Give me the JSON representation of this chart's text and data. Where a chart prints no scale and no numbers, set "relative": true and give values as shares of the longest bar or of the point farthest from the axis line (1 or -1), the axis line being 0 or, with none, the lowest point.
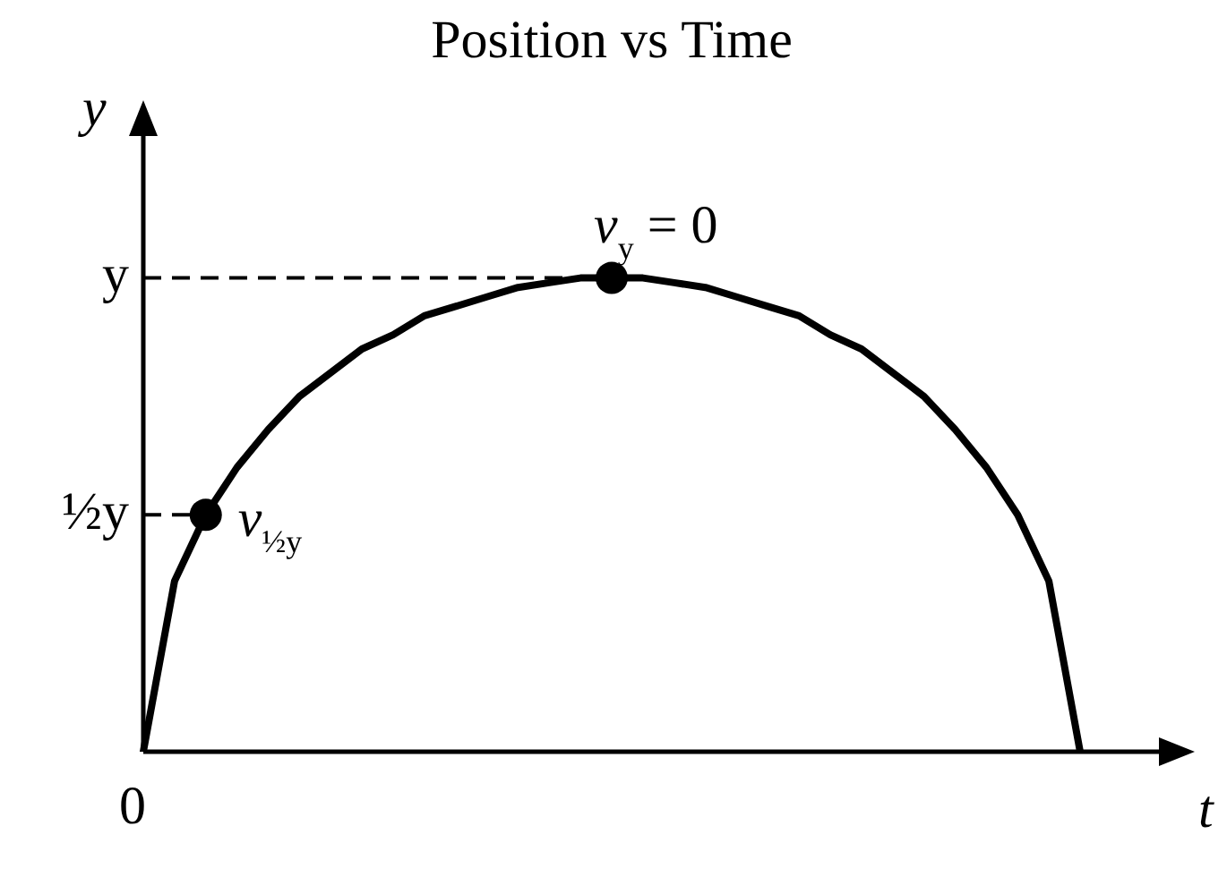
{
  "chart_data": {
    "type": "line",
    "title": "Position vs Time",
    "xlabel": "t",
    "ylabel": "y",
    "categories": [
      null,
      null,
      null,
      null,
      null,
      null,
      null,
      null,
      null,
      null,
      null,
      null,
      null,
      null,
      null,
      null,
      null,
      null,
      null,
      null,
      null,
      null,
      null,
      null,
      null,
      null,
      null,
      null,
      null,
      null,
      null
    ],
    "relative": true,
    "series": [
      {
        "color": "#000000",
        "values": [
          0,
          0.36,
          0.5,
          0.6,
          0.68,
          0.75,
          0.8,
          0.85,
          0.88,
          0.92,
          0.94,
          0.96,
          0.98,
          0.99,
          1,
          1,
          1,
          0.99,
          0.98,
          0.96,
          0.94,
          0.92,
          0.88,
          0.85,
          0.8,
          0.75,
          0.68,
          0.6,
          0.5,
          0.36,
          0
        ]
      }
    ],
    "ref_lines": [
      {
        "axis": "y",
        "value": 1,
        "label": "y",
        "line_style": "dashed"
      },
      {
        "axis": "y",
        "value": 0.5,
        "label": "½y",
        "line_style": "dashed"
      }
    ],
    "annotations": [
      {
        "text": "v$_{y}$ = 0",
        "y": 1
      },
      "v$_{½y}$",
      "0"
    ],
    "legend": false,
    "line_style": "solid"
  }
}
